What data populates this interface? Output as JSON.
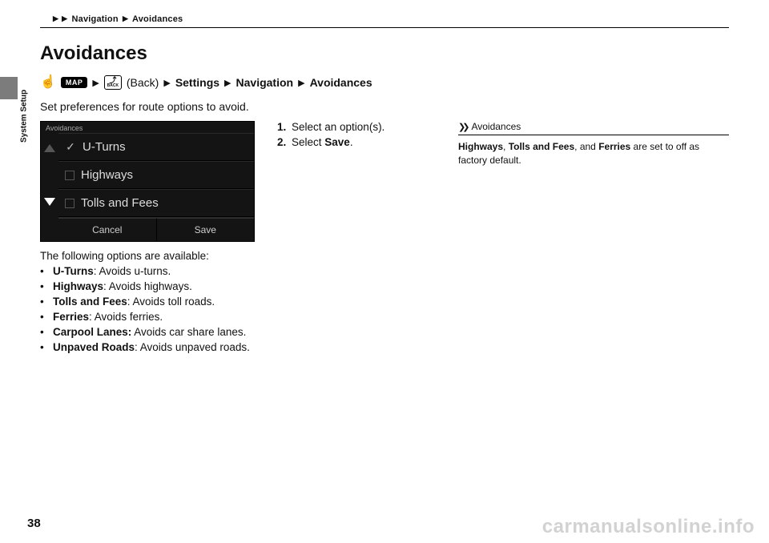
{
  "breadcrumb": {
    "seg1": "Navigation",
    "seg2": "Avoidances"
  },
  "sideTab": "System Setup",
  "title": "Avoidances",
  "nav": {
    "mapBadge": "MAP",
    "backBadge": "BACK",
    "backText": "(Back)",
    "settings": "Settings",
    "navigation": "Navigation",
    "avoidances": "Avoidances"
  },
  "intro": "Set preferences for route options to avoid.",
  "uiShot": {
    "heading": "Avoidances",
    "items": [
      "U-Turns",
      "Highways",
      "Tolls and Fees"
    ],
    "checked": [
      true,
      false,
      false
    ],
    "cancel": "Cancel",
    "save": "Save"
  },
  "afterShot": "The following options are available:",
  "options": [
    {
      "label": "U-Turns",
      "desc": ": Avoids u-turns."
    },
    {
      "label": "Highways",
      "desc": ": Avoids highways."
    },
    {
      "label": "Tolls and Fees",
      "desc": ": Avoids toll roads."
    },
    {
      "label": "Ferries",
      "desc": ": Avoids ferries."
    },
    {
      "label": "Carpool Lanes:",
      "desc": " Avoids car share lanes."
    },
    {
      "label": "Unpaved Roads",
      "desc": ": Avoids unpaved roads."
    }
  ],
  "steps": {
    "s1": "Select an option(s).",
    "s2a": "Select ",
    "s2b": "Save",
    "s2c": "."
  },
  "sideNote": {
    "title": "Avoidances",
    "b1": "Highways",
    "t1": ", ",
    "b2": "Tolls and Fees",
    "t2": ", and ",
    "b3": "Ferries",
    "t3": " are set to off as factory default."
  },
  "pageNum": "38",
  "watermark": "carmanualsonline.info"
}
